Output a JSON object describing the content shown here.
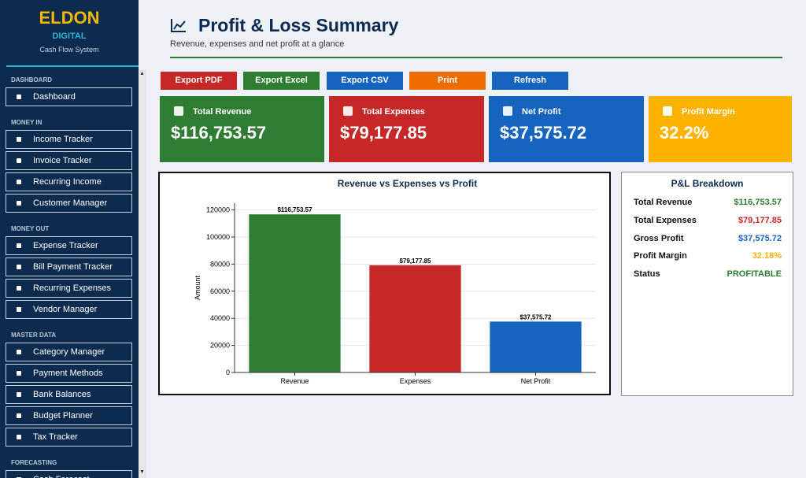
{
  "sidebar": {
    "brand": "ELDON",
    "brand_sub": "DIGITAL",
    "tagline": "Cash Flow System",
    "sections": [
      {
        "title": "DASHBOARD",
        "items": [
          "Dashboard"
        ]
      },
      {
        "title": "MONEY IN",
        "items": [
          "Income Tracker",
          "Invoice Tracker",
          "Recurring Income",
          "Customer Manager"
        ]
      },
      {
        "title": "MONEY OUT",
        "items": [
          "Expense Tracker",
          "Bill Payment Tracker",
          "Recurring Expenses",
          "Vendor Manager"
        ]
      },
      {
        "title": "MASTER DATA",
        "items": [
          "Category Manager",
          "Payment Methods",
          "Bank Balances",
          "Budget Planner",
          "Tax Tracker"
        ]
      },
      {
        "title": "FORECASTING",
        "items": [
          "Cash Forecast"
        ]
      }
    ]
  },
  "header": {
    "title": "Profit & Loss Summary",
    "subtitle": "Revenue, expenses and net profit at a glance"
  },
  "buttons": [
    {
      "label": "Export PDF",
      "color": "#c62828"
    },
    {
      "label": "Export Excel",
      "color": "#2e7d32"
    },
    {
      "label": "Export CSV",
      "color": "#1565c0"
    },
    {
      "label": "Print",
      "color": "#ef6c00"
    },
    {
      "label": "Refresh",
      "color": "#1565c0"
    }
  ],
  "cards": [
    {
      "label": "Total Revenue",
      "value": "$116,753.57",
      "color": "#2e7d32"
    },
    {
      "label": "Total Expenses",
      "value": "$79,177.85",
      "color": "#c62828"
    },
    {
      "label": "Net Profit",
      "value": "$37,575.72",
      "color": "#1565c0"
    },
    {
      "label": "Profit Margin",
      "value": "32.2%",
      "color": "#ffb300"
    }
  ],
  "chart_data": {
    "type": "bar",
    "title": "Revenue vs Expenses vs Profit",
    "y_label": "Amount",
    "categories": [
      "Revenue",
      "Expenses",
      "Net Profit"
    ],
    "values": [
      116753.57,
      79177.85,
      37575.72
    ],
    "value_labels": [
      "$116,753.57",
      "$79,177.85",
      "$37,575.72"
    ],
    "colors": [
      "#2e7d32",
      "#c62828",
      "#1565c0"
    ],
    "ylim": [
      0,
      125000
    ],
    "yticks": [
      0,
      20000,
      40000,
      60000,
      80000,
      100000,
      120000
    ],
    "grid": true
  },
  "breakdown": {
    "title": "P&L Breakdown",
    "rows": [
      {
        "label": "Total Revenue",
        "value": "$116,753.57",
        "color": "#2e7d32"
      },
      {
        "label": "Total Expenses",
        "value": "$79,177.85",
        "color": "#c62828"
      },
      {
        "label": "Gross Profit",
        "value": "$37,575.72",
        "color": "#1565c0"
      },
      {
        "label": "Profit Margin",
        "value": "32.18%",
        "color": "#ffb300"
      },
      {
        "label": "Status",
        "value": "PROFITABLE",
        "color": "#2e7d32"
      }
    ]
  }
}
